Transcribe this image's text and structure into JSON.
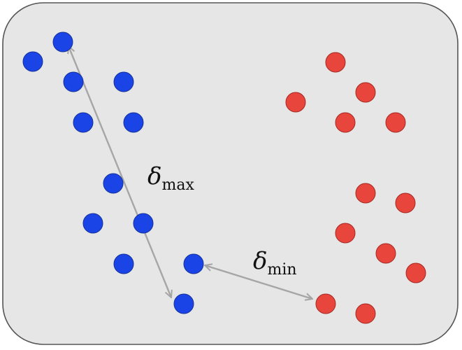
{
  "colors": {
    "panel_fill": "#e6e6e6",
    "panel_stroke": "#555555",
    "cluster_blue": "#1a44e6",
    "cluster_blue_stroke": "#16329a",
    "cluster_red": "#e8453c",
    "cluster_red_stroke": "#a52a24",
    "arrow": "#a6a6a6"
  },
  "labels": {
    "delta_max_symbol": "δ",
    "delta_max_subscript": "max",
    "delta_min_symbol": "δ",
    "delta_min_subscript": "min"
  }
}
